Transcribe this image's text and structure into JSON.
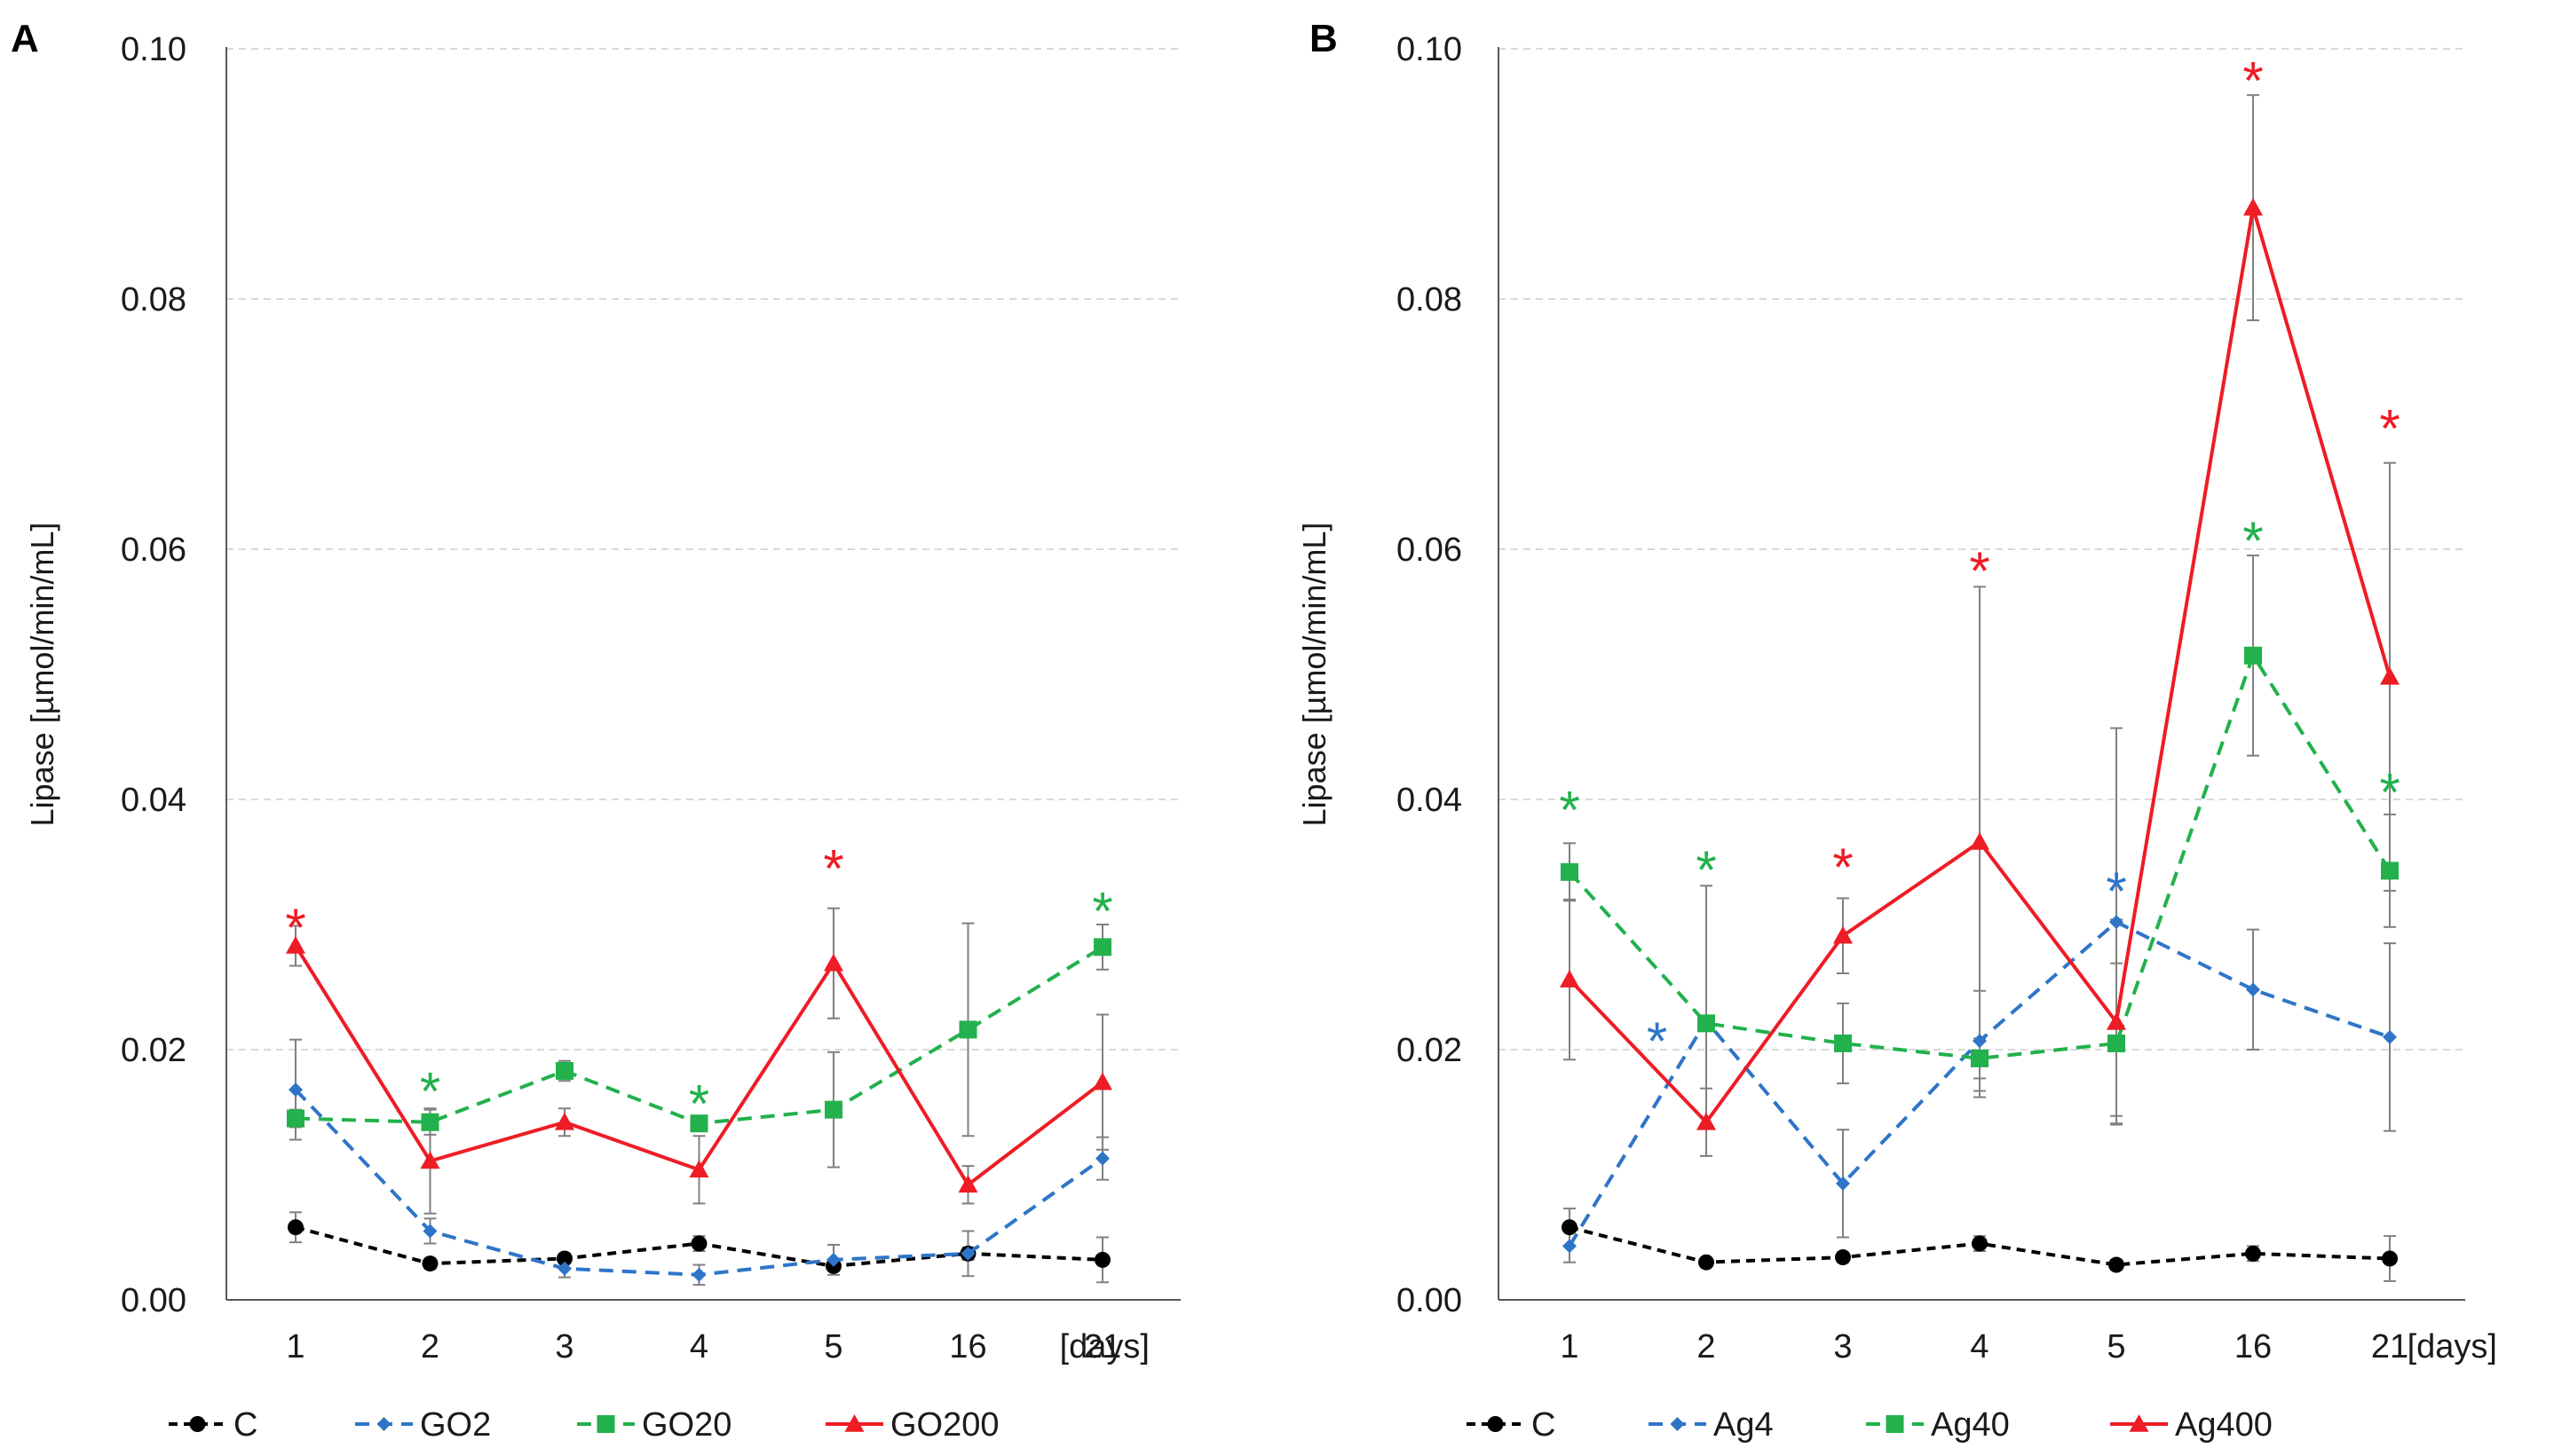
{
  "chart_data": [
    {
      "type": "line",
      "panel_label": "A",
      "title": "",
      "ylabel": "Lipase  [µmol/min/mL]",
      "xlabel": "[days]",
      "categories": [
        "1",
        "2",
        "3",
        "4",
        "5",
        "16",
        "21"
      ],
      "ylim": [
        0,
        0.1
      ],
      "yticks": [
        "0.00",
        "0.02",
        "0.04",
        "0.06",
        "0.08",
        "0.10"
      ],
      "grid": "horizontal dashed",
      "legend_position": "bottom",
      "series": [
        {
          "name": "C",
          "color": "#000000",
          "line": "dashed",
          "marker": "circle",
          "values": [
            0.0058,
            0.0029,
            0.0033,
            0.0045,
            0.0027,
            0.0037,
            0.0032
          ],
          "errors": [
            0.0012,
            0.0004,
            0.0004,
            0.0006,
            0.0004,
            0.0005,
            0.0018
          ]
        },
        {
          "name": "GO2",
          "color": "#2E75C8",
          "line": "dashed",
          "marker": "diamond",
          "values": [
            0.0168,
            0.0055,
            0.0025,
            0.002,
            0.0032,
            0.0037,
            0.0113
          ],
          "errors": [
            0.004,
            0.001,
            0.0007,
            0.0008,
            0.0012,
            0.0018,
            0.0017
          ]
        },
        {
          "name": "GO20",
          "color": "#22B14C",
          "line": "dashed",
          "marker": "square",
          "values": [
            0.0145,
            0.0142,
            0.0183,
            0.0141,
            0.0152,
            0.0216,
            0.0282
          ],
          "errors": [
            0.0007,
            0.001,
            0.0008,
            0.0004,
            0.0046,
            0.0085,
            0.0018
          ]
        },
        {
          "name": "GO200",
          "color": "#EE1C25",
          "line": "solid",
          "marker": "triangle",
          "values": [
            0.0283,
            0.0111,
            0.0142,
            0.0104,
            0.0269,
            0.0092,
            0.0174
          ],
          "errors": [
            0.0016,
            0.0042,
            0.0011,
            0.0027,
            0.0044,
            0.0015,
            0.0054
          ]
        }
      ],
      "significance_marks": [
        {
          "category": "1",
          "series": "GO200",
          "text": "*",
          "value": 0.031
        },
        {
          "category": "2",
          "series": "GO20",
          "text": "*",
          "value": 0.0179
        },
        {
          "category": "4",
          "series": "GO20",
          "text": "*",
          "value": 0.0169
        },
        {
          "category": "5",
          "series": "GO200",
          "text": "*",
          "value": 0.0357
        },
        {
          "category": "21",
          "series": "GO20",
          "text": "*",
          "value": 0.0323
        }
      ]
    },
    {
      "type": "line",
      "panel_label": "B",
      "title": "",
      "ylabel": "Lipase  [µmol/min/mL]",
      "xlabel": "[days]",
      "categories": [
        "1",
        "2",
        "3",
        "4",
        "5",
        "16",
        "21"
      ],
      "ylim": [
        0,
        0.1
      ],
      "yticks": [
        "0.00",
        "0.02",
        "0.04",
        "0.06",
        "0.08",
        "0.10"
      ],
      "grid": "horizontal dashed",
      "legend_position": "bottom",
      "series": [
        {
          "name": "C",
          "color": "#000000",
          "line": "dashed",
          "marker": "circle",
          "values": [
            0.0058,
            0.003,
            0.0034,
            0.0045,
            0.0028,
            0.0037,
            0.0033
          ],
          "errors": [
            0.0015,
            0.0003,
            0.0004,
            0.0006,
            0.0004,
            0.0006,
            0.0018
          ]
        },
        {
          "name": "Ag4",
          "color": "#2E75C8",
          "line": "dashed",
          "marker": "diamond",
          "values": [
            0.0043,
            0.0223,
            0.0093,
            0.0207,
            0.0302,
            0.0248,
            0.021
          ],
          "errors": [
            0.0013,
            0.0108,
            0.0043,
            0.004,
            0.0155,
            0.0048,
            0.0075
          ]
        },
        {
          "name": "Ag40",
          "color": "#22B14C",
          "line": "dashed",
          "marker": "square",
          "values": [
            0.0342,
            0.0221,
            0.0205,
            0.0193,
            0.0205,
            0.0515,
            0.0343
          ],
          "errors": [
            0.0023,
            0.0005,
            0.0032,
            0.0016,
            0.0064,
            0.008,
            0.0045
          ]
        },
        {
          "name": "Ag400",
          "color": "#EE1C25",
          "line": "solid",
          "marker": "triangle",
          "values": [
            0.0256,
            0.0142,
            0.0291,
            0.0366,
            0.0222,
            0.0873,
            0.0498
          ],
          "errors": [
            0.0064,
            0.0027,
            0.003,
            0.0204,
            0.0082,
            0.009,
            0.0171
          ]
        }
      ],
      "significance_marks": [
        {
          "category": "1",
          "series": "Ag40",
          "text": "*",
          "value": 0.0404
        },
        {
          "category": "2",
          "series": "Ag40",
          "text": "*",
          "value": 0.0356
        },
        {
          "category": "3",
          "series": "Ag400",
          "text": "*",
          "value": 0.0358
        },
        {
          "category": "4",
          "series": "Ag400",
          "text": "*",
          "value": 0.0595
        },
        {
          "category": "5",
          "series": "Ag4",
          "text": "*",
          "value": 0.0339
        },
        {
          "category": "16",
          "series": "Ag400",
          "text": "*",
          "value": 0.0987
        },
        {
          "category": "16",
          "series": "Ag40",
          "text": "*",
          "value": 0.0619
        },
        {
          "category": "21",
          "series": "Ag400",
          "text": "*",
          "value": 0.0709
        },
        {
          "category": "21",
          "series": "Ag40",
          "text": "*",
          "value": 0.0418
        },
        {
          "category": "2",
          "series": "Ag4",
          "text": "*",
          "value": 0.0219,
          "offset": "left"
        }
      ]
    }
  ]
}
